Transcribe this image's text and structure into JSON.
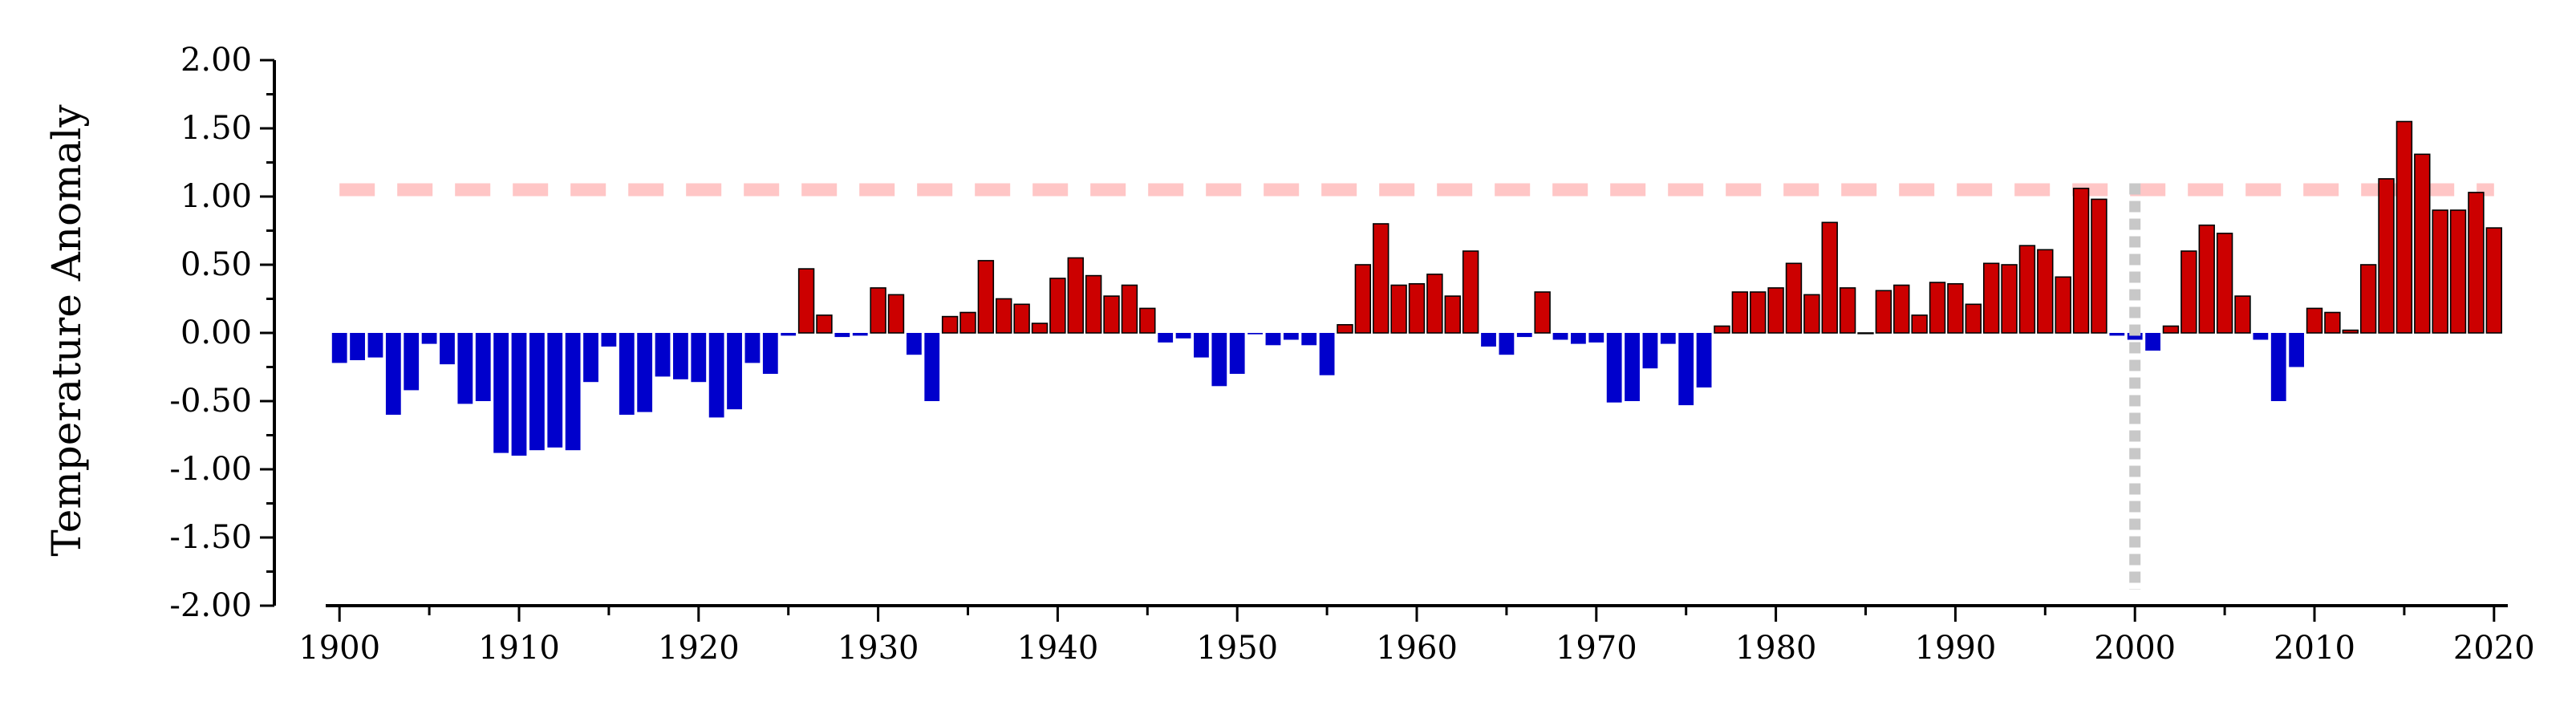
{
  "chart_data": {
    "type": "bar",
    "title": "",
    "xlabel": "",
    "ylabel": "Temperature Anomaly",
    "ylim": [
      -2.0,
      2.0
    ],
    "yticks": [
      "2.00",
      "1.50",
      "1.00",
      "0.50",
      "0.00",
      "-0.50",
      "-1.00",
      "-1.50",
      "-2.00"
    ],
    "xlim": [
      1899.5,
      2020.5
    ],
    "xticks": [
      "1900",
      "1910",
      "1920",
      "1930",
      "1940",
      "1950",
      "1960",
      "1970",
      "1980",
      "1990",
      "2000",
      "2010",
      "2020"
    ],
    "grid": false,
    "legend": "none",
    "colors": {
      "positive": "#cc0000",
      "negative": "#0000cc",
      "threshold_line": "#ffc6c6",
      "marker_line": "#c8c8c8"
    },
    "threshold_line_value": 1.05,
    "marker_line_x": 2000,
    "x": [
      1900,
      1901,
      1902,
      1903,
      1904,
      1905,
      1906,
      1907,
      1908,
      1909,
      1910,
      1911,
      1912,
      1913,
      1914,
      1915,
      1916,
      1917,
      1918,
      1919,
      1920,
      1921,
      1922,
      1923,
      1924,
      1925,
      1926,
      1927,
      1928,
      1929,
      1930,
      1931,
      1932,
      1933,
      1934,
      1935,
      1936,
      1937,
      1938,
      1939,
      1940,
      1941,
      1942,
      1943,
      1944,
      1945,
      1946,
      1947,
      1948,
      1949,
      1950,
      1951,
      1952,
      1953,
      1954,
      1955,
      1956,
      1957,
      1958,
      1959,
      1960,
      1961,
      1962,
      1963,
      1964,
      1965,
      1966,
      1967,
      1968,
      1969,
      1970,
      1971,
      1972,
      1973,
      1974,
      1975,
      1976,
      1977,
      1978,
      1979,
      1980,
      1981,
      1982,
      1983,
      1984,
      1985,
      1986,
      1987,
      1988,
      1989,
      1990,
      1991,
      1992,
      1993,
      1994,
      1995,
      1996,
      1997,
      1998,
      1999,
      2000,
      2001,
      2002,
      2003,
      2004,
      2005,
      2006,
      2007,
      2008,
      2009,
      2010,
      2011,
      2012,
      2013,
      2014,
      2015,
      2016,
      2017,
      2018,
      2019,
      2020
    ],
    "values": [
      -0.22,
      -0.2,
      -0.18,
      -0.6,
      -0.42,
      -0.08,
      -0.23,
      -0.52,
      -0.5,
      -0.88,
      -0.9,
      -0.86,
      -0.84,
      -0.86,
      -0.36,
      -0.1,
      -0.6,
      -0.58,
      -0.32,
      -0.34,
      -0.36,
      -0.62,
      -0.56,
      -0.22,
      -0.3,
      -0.02,
      0.47,
      0.13,
      -0.03,
      -0.02,
      0.33,
      0.28,
      -0.16,
      -0.5,
      0.12,
      0.15,
      0.53,
      0.25,
      0.21,
      0.07,
      0.4,
      0.55,
      0.42,
      0.27,
      0.35,
      0.18,
      -0.07,
      -0.04,
      -0.18,
      -0.39,
      -0.3,
      -0.01,
      -0.09,
      -0.05,
      -0.09,
      -0.31,
      0.06,
      0.5,
      0.8,
      0.35,
      0.36,
      0.43,
      0.27,
      0.6,
      -0.1,
      -0.16,
      -0.03,
      0.3,
      -0.05,
      -0.08,
      -0.07,
      -0.51,
      -0.5,
      -0.26,
      -0.08,
      -0.53,
      -0.4,
      0.05,
      0.3,
      0.3,
      0.33,
      0.51,
      0.28,
      0.81,
      0.33,
      0.0,
      0.31,
      0.35,
      0.13,
      0.37,
      0.36,
      0.21,
      0.51,
      0.5,
      0.64,
      0.61,
      0.41,
      1.06,
      0.98,
      -0.02,
      -0.05,
      -0.13,
      0.05,
      0.6,
      0.79,
      0.73,
      0.27,
      -0.05,
      -0.5,
      -0.25,
      0.18,
      0.15,
      0.02,
      0.5,
      1.13,
      1.55,
      1.31,
      0.9,
      0.9,
      1.03,
      0.77
    ]
  }
}
